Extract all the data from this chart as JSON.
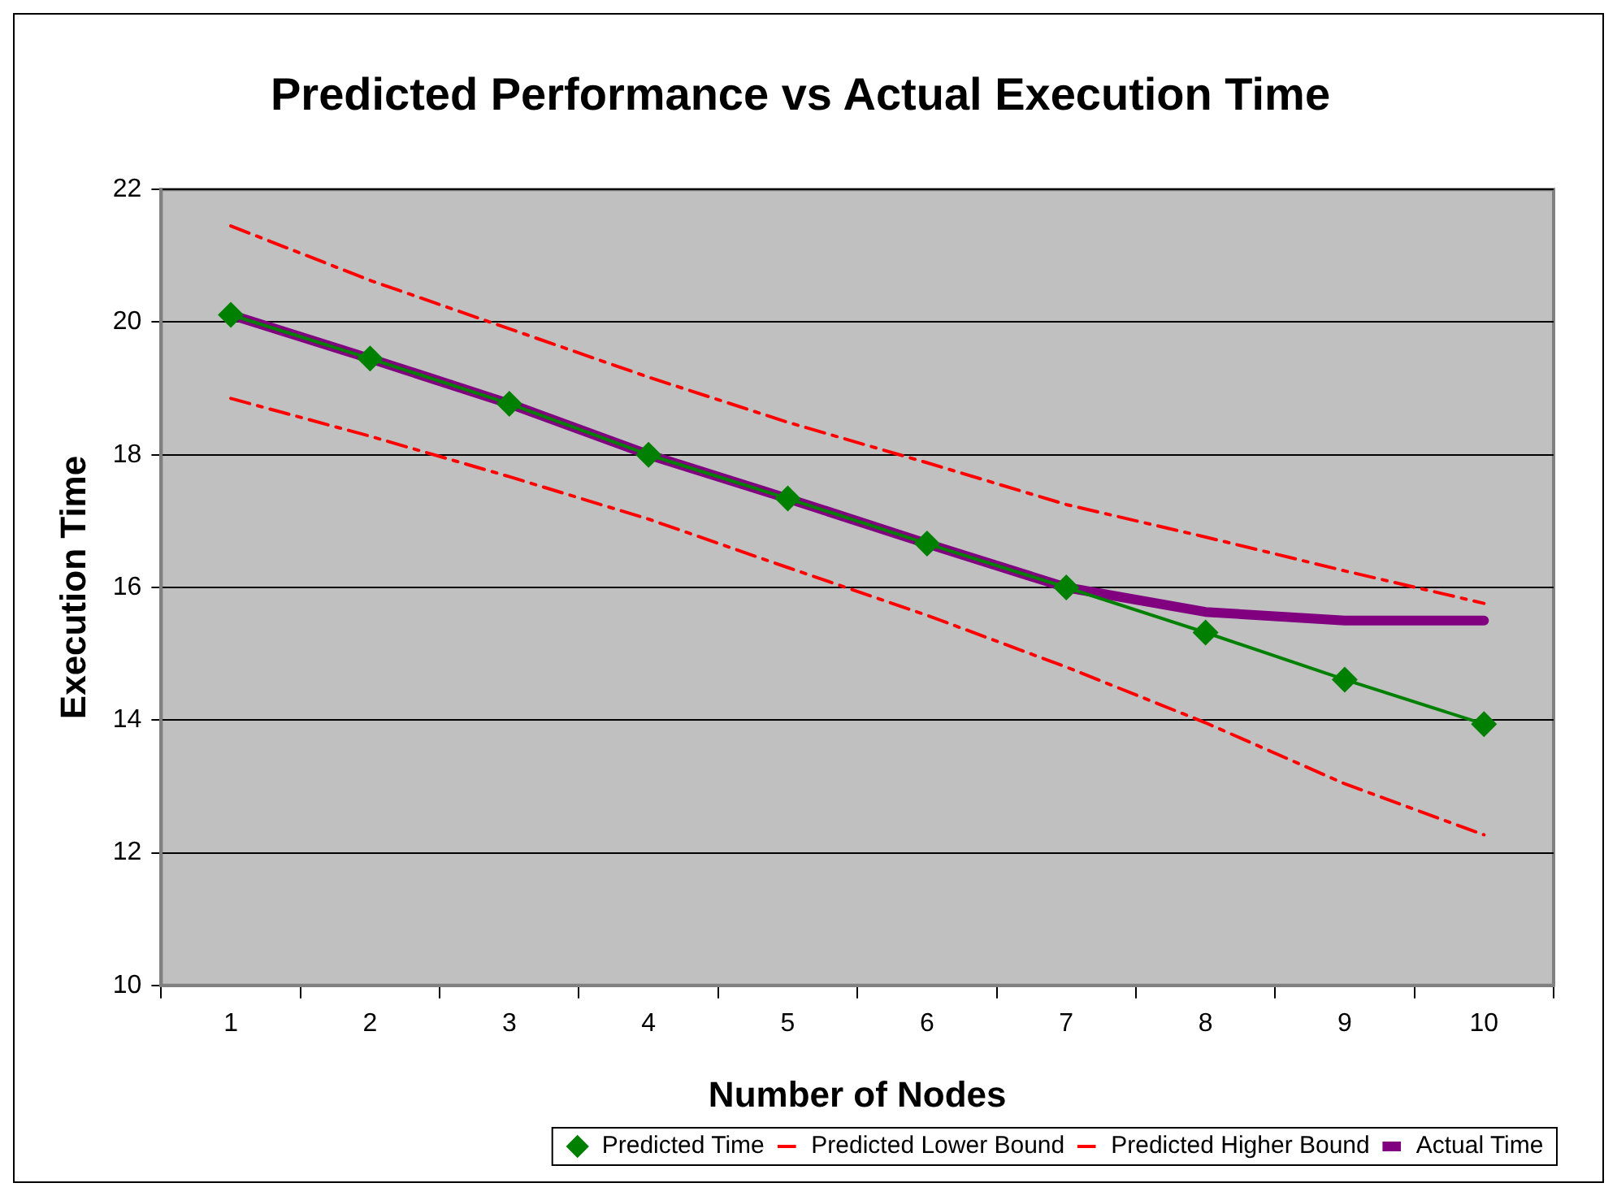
{
  "chart_data": {
    "type": "line",
    "title": "Predicted Performance vs Actual Execution Time",
    "xlabel": "Number of Nodes",
    "ylabel": "Execution Time",
    "categories": [
      "1",
      "2",
      "3",
      "4",
      "5",
      "6",
      "7",
      "8",
      "9",
      "10"
    ],
    "series": [
      {
        "name": "Predicted Time",
        "color": "#008000",
        "marker": "diamond",
        "line_style": "solid",
        "values": [
          20.11,
          19.45,
          18.77,
          18.0,
          17.34,
          16.66,
          16.0,
          15.32,
          14.61,
          13.94
        ]
      },
      {
        "name": "Predicted Lower Bound",
        "color": "#ff0000",
        "marker": "none",
        "line_style": "dashed",
        "values": [
          18.85,
          18.28,
          17.67,
          17.03,
          16.3,
          15.58,
          14.8,
          13.96,
          13.04,
          12.27
        ]
      },
      {
        "name": "Predicted Higher Bound",
        "color": "#ff0000",
        "marker": "none",
        "line_style": "dashed",
        "values": [
          21.45,
          20.63,
          19.9,
          19.17,
          18.49,
          17.88,
          17.25,
          16.76,
          16.25,
          15.76
        ]
      },
      {
        "name": "Actual Time",
        "color": "#800080",
        "marker": "none",
        "line_style": "solid",
        "values": [
          20.11,
          19.45,
          18.77,
          18.0,
          17.34,
          16.66,
          16.0,
          15.63,
          15.5,
          15.5
        ]
      }
    ],
    "ylim": [
      10,
      22
    ],
    "yticks": [
      10,
      12,
      14,
      16,
      18,
      20,
      22
    ],
    "grid": "y",
    "legend": "bottom right"
  }
}
